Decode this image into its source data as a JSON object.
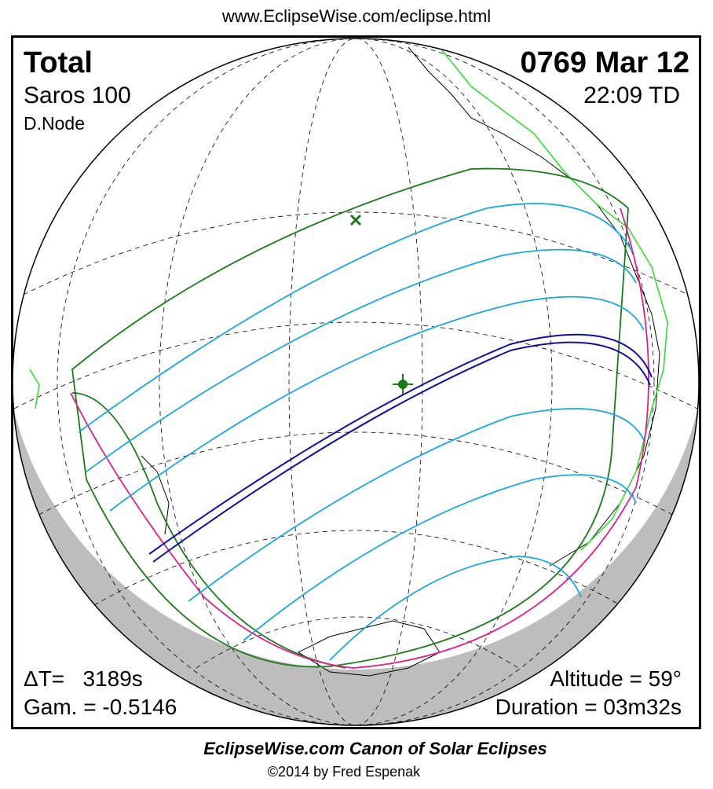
{
  "header": {
    "url": "www.EclipseWise.com/eclipse.html"
  },
  "info": {
    "type": "Total",
    "date": "0769 Mar 12",
    "saros": "Saros 100",
    "time": "22:09 TD",
    "node": "D.Node",
    "delta_t": "ΔT=   3189s",
    "gamma": "Gam. = -0.5146",
    "altitude": "Altitude = 59°",
    "duration": "Duration = 03m32s"
  },
  "footer": {
    "title": "EclipseWise.com Canon of Solar Eclipses",
    "copyright": "©2014 by Fred Espenak"
  }
}
